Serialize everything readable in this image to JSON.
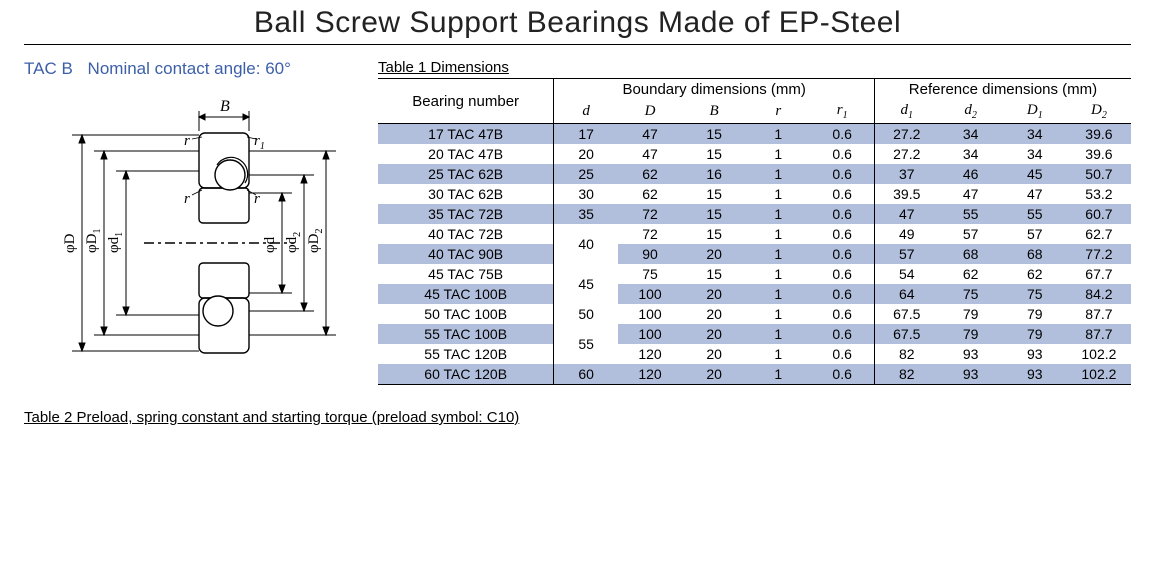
{
  "title": "Ball Screw Support Bearings Made of EP-Steel",
  "series": {
    "code": "TAC B",
    "note": "Nominal contact angle: 60°"
  },
  "table1": {
    "title": "Table 1  Dimensions",
    "headers": {
      "bearing": "Bearing number",
      "boundary": "Boundary dimensions (mm)",
      "reference": "Reference dimensions (mm)",
      "d": "d",
      "D": "D",
      "B": "B",
      "r": "r",
      "r1": "r",
      "r1_sub": "1",
      "d1": "d",
      "d1_sub": "1",
      "d2": "d",
      "d2_sub": "2",
      "D1": "D",
      "D1_sub": "1",
      "D2": "D",
      "D2_sub": "2"
    },
    "colors": {
      "band": "#b1bfdd",
      "rule": "#000000",
      "series_text": "#3c5fa8"
    },
    "rows": [
      {
        "bn": "17 TAC   47B",
        "d": "17",
        "D": "47",
        "B": "15",
        "r": "1",
        "r1": "0.6",
        "d1": "27.2",
        "d2": "34",
        "D1": "34",
        "D2": "39.6",
        "band": "even"
      },
      {
        "bn": "20 TAC   47B",
        "d": "20",
        "D": "47",
        "B": "15",
        "r": "1",
        "r1": "0.6",
        "d1": "27.2",
        "d2": "34",
        "D1": "34",
        "D2": "39.6",
        "band": "odd"
      },
      {
        "bn": "25 TAC   62B",
        "d": "25",
        "D": "62",
        "B": "16",
        "r": "1",
        "r1": "0.6",
        "d1": "37",
        "d2": "46",
        "D1": "45",
        "D2": "50.7",
        "band": "even"
      },
      {
        "bn": "30 TAC   62B",
        "d": "30",
        "D": "62",
        "B": "15",
        "r": "1",
        "r1": "0.6",
        "d1": "39.5",
        "d2": "47",
        "D1": "47",
        "D2": "53.2",
        "band": "odd"
      },
      {
        "bn": "35 TAC   72B",
        "d": "35",
        "D": "72",
        "B": "15",
        "r": "1",
        "r1": "0.6",
        "d1": "47",
        "d2": "55",
        "D1": "55",
        "D2": "60.7",
        "band": "even"
      },
      {
        "bn": "40 TAC   72B",
        "d_merge": "40",
        "d_span": 2,
        "D": "72",
        "B": "15",
        "r": "1",
        "r1": "0.6",
        "d1": "49",
        "d2": "57",
        "D1": "57",
        "D2": "62.7",
        "band": "odd"
      },
      {
        "bn": "40 TAC   90B",
        "d_skip": true,
        "D": "90",
        "B": "20",
        "r": "1",
        "r1": "0.6",
        "d1": "57",
        "d2": "68",
        "D1": "68",
        "D2": "77.2",
        "band": "even"
      },
      {
        "bn": "45 TAC   75B",
        "d_merge": "45",
        "d_span": 2,
        "D": "75",
        "B": "15",
        "r": "1",
        "r1": "0.6",
        "d1": "54",
        "d2": "62",
        "D1": "62",
        "D2": "67.7",
        "band": "odd"
      },
      {
        "bn": "45 TAC 100B",
        "d_skip": true,
        "D": "100",
        "B": "20",
        "r": "1",
        "r1": "0.6",
        "d1": "64",
        "d2": "75",
        "D1": "75",
        "D2": "84.2",
        "band": "even"
      },
      {
        "bn": "50 TAC 100B",
        "d": "50",
        "D": "100",
        "B": "20",
        "r": "1",
        "r1": "0.6",
        "d1": "67.5",
        "d2": "79",
        "D1": "79",
        "D2": "87.7",
        "band": "odd"
      },
      {
        "bn": "55 TAC 100B",
        "d_merge": "55",
        "d_span": 2,
        "D": "100",
        "B": "20",
        "r": "1",
        "r1": "0.6",
        "d1": "67.5",
        "d2": "79",
        "D1": "79",
        "D2": "87.7",
        "band": "even"
      },
      {
        "bn": "55 TAC 120B",
        "d_skip": true,
        "D": "120",
        "B": "20",
        "r": "1",
        "r1": "0.6",
        "d1": "82",
        "d2": "93",
        "D1": "93",
        "D2": "102.2",
        "band": "odd"
      },
      {
        "bn": "60 TAC 120B",
        "d": "60",
        "D": "120",
        "B": "20",
        "r": "1",
        "r1": "0.6",
        "d1": "82",
        "d2": "93",
        "D1": "93",
        "D2": "102.2",
        "band": "even"
      }
    ]
  },
  "table2_title": "Table 2  Preload, spring constant and starting torque (preload symbol: C10)",
  "diagram": {
    "labels": {
      "B": "B",
      "r": "r",
      "r1": "r",
      "r1_sub": "1",
      "phiD": "φD",
      "phiD1": "φD",
      "phiD1_sub": "1",
      "phid1": "φd",
      "phid1_sub": "1",
      "phid": "φd",
      "phid2": "φd",
      "phid2_sub": "2",
      "phiD2": "φD",
      "phiD2_sub": "2"
    },
    "stroke": "#000000",
    "fill": "#ffffff"
  }
}
